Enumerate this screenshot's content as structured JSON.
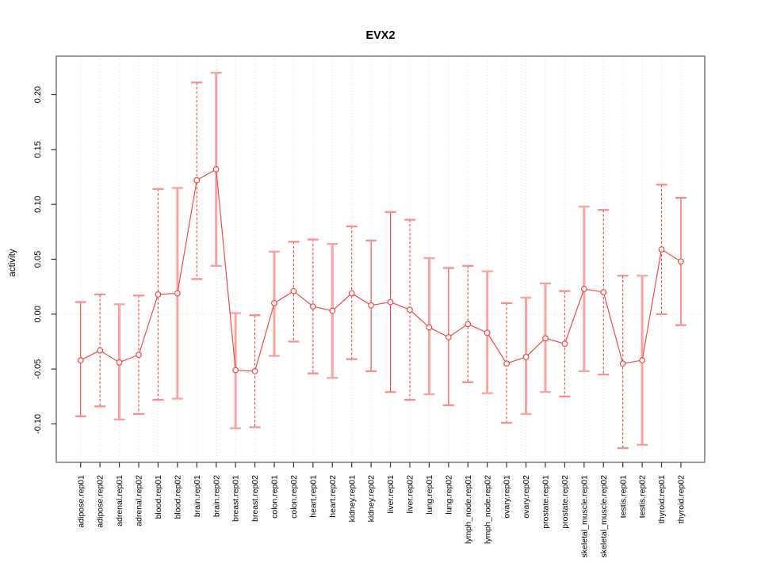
{
  "chart_data": {
    "type": "line",
    "title": "EVX2",
    "xlabel": "",
    "ylabel": "activity",
    "legend": "none",
    "grid": "dotted vertical gridline per category plus dotted horizontal line at 0",
    "ylim": [
      -0.135,
      0.235
    ],
    "yticks": [
      {
        "value": -0.1,
        "label": "-0.10"
      },
      {
        "value": -0.05,
        "label": "-0.05"
      },
      {
        "value": 0.0,
        "label": "0.00"
      },
      {
        "value": 0.05,
        "label": "0.05"
      },
      {
        "value": 0.1,
        "label": "0.10"
      },
      {
        "value": 0.15,
        "label": "0.15"
      },
      {
        "value": 0.2,
        "label": "0.20"
      }
    ],
    "categories": [
      "adipose.rep01",
      "adipose.rep02",
      "adrenal.rep01",
      "adrenal.rep02",
      "blood.rep01",
      "blood.rep02",
      "brain.rep01",
      "brain.rep02",
      "breast.rep01",
      "breast.rep02",
      "colon.rep01",
      "colon.rep02",
      "heart.rep01",
      "heart.rep02",
      "kidney.rep01",
      "kidney.rep02",
      "liver.rep01",
      "liver.rep02",
      "lung.rep01",
      "lung.rep02",
      "lymph_node.rep01",
      "lymph_node.rep02",
      "ovary.rep01",
      "ovary.rep02",
      "prostate.rep01",
      "prostate.rep02",
      "skeletal_muscle.rep01",
      "skeletal_muscle.rep02",
      "testis.rep01",
      "testis.rep02",
      "thyroid.rep01",
      "thyroid.rep02"
    ],
    "series": [
      {
        "name": "activity",
        "points": [
          {
            "value": -0.042,
            "lo": -0.093,
            "hi": 0.011,
            "bar_style": "solid"
          },
          {
            "value": -0.033,
            "lo": -0.084,
            "hi": 0.018,
            "bar_style": "dashed"
          },
          {
            "value": -0.044,
            "lo": -0.096,
            "hi": 0.009,
            "bar_style": "thick"
          },
          {
            "value": -0.037,
            "lo": -0.091,
            "hi": 0.017,
            "bar_style": "dashed"
          },
          {
            "value": 0.018,
            "lo": -0.078,
            "hi": 0.114,
            "bar_style": "dashed"
          },
          {
            "value": 0.019,
            "lo": -0.077,
            "hi": 0.115,
            "bar_style": "thick"
          },
          {
            "value": 0.122,
            "lo": 0.032,
            "hi": 0.211,
            "bar_style": "dashed"
          },
          {
            "value": 0.132,
            "lo": 0.044,
            "hi": 0.22,
            "bar_style": "thick"
          },
          {
            "value": -0.051,
            "lo": -0.104,
            "hi": 0.001,
            "bar_style": "thick"
          },
          {
            "value": -0.052,
            "lo": -0.103,
            "hi": -0.001,
            "bar_style": "dashed"
          },
          {
            "value": 0.01,
            "lo": -0.038,
            "hi": 0.057,
            "bar_style": "thick"
          },
          {
            "value": 0.021,
            "lo": -0.025,
            "hi": 0.066,
            "bar_style": "dashed"
          },
          {
            "value": 0.007,
            "lo": -0.054,
            "hi": 0.068,
            "bar_style": "dashed"
          },
          {
            "value": 0.003,
            "lo": -0.058,
            "hi": 0.064,
            "bar_style": "thick"
          },
          {
            "value": 0.019,
            "lo": -0.041,
            "hi": 0.08,
            "bar_style": "dashed"
          },
          {
            "value": 0.008,
            "lo": -0.052,
            "hi": 0.067,
            "bar_style": "solid"
          },
          {
            "value": 0.011,
            "lo": -0.071,
            "hi": 0.093,
            "bar_style": "solid"
          },
          {
            "value": 0.004,
            "lo": -0.078,
            "hi": 0.086,
            "bar_style": "dashed"
          },
          {
            "value": -0.012,
            "lo": -0.073,
            "hi": 0.051,
            "bar_style": "thick"
          },
          {
            "value": -0.021,
            "lo": -0.083,
            "hi": 0.042,
            "bar_style": "solid"
          },
          {
            "value": -0.009,
            "lo": -0.062,
            "hi": 0.044,
            "bar_style": "dashed"
          },
          {
            "value": -0.017,
            "lo": -0.072,
            "hi": 0.039,
            "bar_style": "thick"
          },
          {
            "value": -0.045,
            "lo": -0.099,
            "hi": 0.01,
            "bar_style": "dashed"
          },
          {
            "value": -0.039,
            "lo": -0.091,
            "hi": 0.015,
            "bar_style": "thick"
          },
          {
            "value": -0.022,
            "lo": -0.071,
            "hi": 0.028,
            "bar_style": "thick"
          },
          {
            "value": -0.027,
            "lo": -0.075,
            "hi": 0.021,
            "bar_style": "dashed"
          },
          {
            "value": 0.023,
            "lo": -0.052,
            "hi": 0.098,
            "bar_style": "thick"
          },
          {
            "value": 0.02,
            "lo": -0.055,
            "hi": 0.095,
            "bar_style": "dashed"
          },
          {
            "value": -0.045,
            "lo": -0.122,
            "hi": 0.035,
            "bar_style": "dashed"
          },
          {
            "value": -0.042,
            "lo": -0.119,
            "hi": 0.035,
            "bar_style": "thick"
          },
          {
            "value": 0.059,
            "lo": 0.0,
            "hi": 0.118,
            "bar_style": "dashed"
          },
          {
            "value": 0.048,
            "lo": -0.01,
            "hi": 0.106,
            "bar_style": "solid"
          }
        ]
      }
    ],
    "colors": {
      "line": "#F8433C",
      "point_fill": "#FFFFFF",
      "error_thick": "#FBA3A0",
      "cap": "#FA8E8B",
      "grid": "#DCDCDC",
      "zero_line": "#DCDCDC",
      "box": "#808080",
      "tick": "#333333",
      "text": "#000000"
    }
  }
}
